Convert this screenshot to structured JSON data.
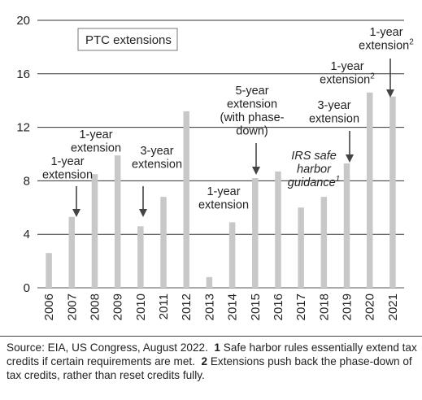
{
  "chart_data": {
    "type": "bar",
    "title": "",
    "xlabel": "",
    "ylabel": "",
    "ylim": [
      0,
      20
    ],
    "yticks": [
      0,
      4,
      8,
      12,
      16,
      20
    ],
    "grid": true,
    "color": "#c8c8c8",
    "categories": [
      "2006",
      "2007",
      "2008",
      "2009",
      "2010",
      "2011",
      "2012",
      "2013",
      "2014",
      "2015",
      "2016",
      "2017",
      "2018",
      "2019",
      "2020",
      "2021"
    ],
    "values": [
      2.6,
      5.3,
      8.5,
      9.9,
      4.6,
      6.8,
      13.2,
      0.8,
      4.9,
      8.2,
      8.7,
      6.0,
      6.8,
      9.3,
      14.6,
      14.3
    ],
    "legend": "PTC extensions",
    "annotations": [
      {
        "lines": [
          "1-year",
          "extension"
        ],
        "category": "2007",
        "arrow": true
      },
      {
        "lines": [
          "1-year",
          "extension"
        ],
        "category": "2008",
        "arrow": false
      },
      {
        "lines": [
          "3-year",
          "extension"
        ],
        "category": "2010",
        "arrow": true
      },
      {
        "lines": [
          "1-year",
          "extension"
        ],
        "category": "2013",
        "arrow": false
      },
      {
        "lines": [
          "5-year",
          "extension",
          "(with phase-",
          "down)"
        ],
        "category": "2015",
        "arrow": true
      },
      {
        "lines": [
          "IRS safe",
          "harbor",
          "guidance"
        ],
        "sup": "1",
        "category": "2017",
        "arrow": false,
        "italic": true
      },
      {
        "lines": [
          "3-year",
          "extension"
        ],
        "category": "2019",
        "arrow": true
      },
      {
        "lines": [
          "1-year",
          "extension"
        ],
        "sup": "2",
        "category": "2020",
        "arrow": false
      },
      {
        "lines": [
          "1-year",
          "extension"
        ],
        "sup": "2",
        "category": "2021",
        "arrow": true
      }
    ]
  },
  "footer": {
    "source": "Source: EIA, US Congress, August 2022.",
    "note1_num": "1",
    "note1_text": "Safe harbor rules essentially extend tax credits if certain requirements are met.",
    "note2_num": "2",
    "note2_text": "Extensions push back the phase-down of tax credits, rather than reset credits fully."
  }
}
